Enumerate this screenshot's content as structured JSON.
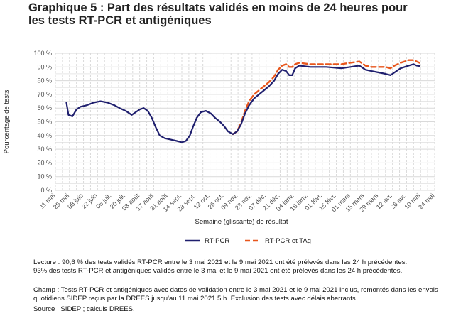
{
  "title_lines": [
    "Graphique 5 : Part des résultats validés en moins de 24 heures pour",
    "les tests RT-PCR et antigéniques"
  ],
  "notes": {
    "lecture": [
      "Lecture : 90,6 % des tests validés RT-PCR entre le 3 mai 2021 et le 9 mai 2021 ont été prélevés dans les 24 h précédentes.",
      "93% des tests RT-PCR et antigéniques validés entre le 3 mai et le 9 mai 2021 ont été prélevés dans les 24 h précédentes."
    ],
    "champ": [
      "Champ : Tests RT-PCR et antigéniques avec dates de validation entre le 3 mai 2021 et le 9 mai 2021 inclus, remontés dans les envois",
      "quotidiens SIDEP reçus par la DREES jusqu'au 11 mai 2021 5 h. Exclusion des tests avec délais aberrants."
    ],
    "source": "Source : SIDEP ; calculs DREES."
  },
  "colors": {
    "rtpcr": "#1f1f6e",
    "rtpcr_tag": "#e8561c",
    "grid": "#d9d9d9",
    "axis_text": "#4d4d4d"
  },
  "chart_data": {
    "type": "line",
    "title": "Graphique 5 : Part des résultats validés en moins de 24 heures pour les tests RT-PCR et antigéniques",
    "xlabel": "Semaine (glissante) de résultat",
    "ylabel": "Pourcentage de tests",
    "ylim": [
      0,
      100
    ],
    "yticks": [
      "0 %",
      "10 %",
      "20 %",
      "30 %",
      "40 %",
      "50 %",
      "60 %",
      "70 %",
      "80 %",
      "90 %",
      "100 %"
    ],
    "xlim": [
      "2020-05-11",
      "2021-05-24"
    ],
    "xticks": [
      {
        "date": "2020-05-11",
        "label": "11 mai"
      },
      {
        "date": "2020-05-25",
        "label": "25 mai"
      },
      {
        "date": "2020-06-08",
        "label": "08 juin"
      },
      {
        "date": "2020-06-22",
        "label": "22 juin"
      },
      {
        "date": "2020-07-06",
        "label": "06 juil."
      },
      {
        "date": "2020-07-20",
        "label": "20 juil."
      },
      {
        "date": "2020-08-03",
        "label": "03 août"
      },
      {
        "date": "2020-08-17",
        "label": "17 août"
      },
      {
        "date": "2020-08-31",
        "label": "31 août"
      },
      {
        "date": "2020-09-14",
        "label": "14 sept."
      },
      {
        "date": "2020-09-28",
        "label": "28 sept."
      },
      {
        "date": "2020-10-12",
        "label": "12 oct."
      },
      {
        "date": "2020-10-26",
        "label": "26 oct."
      },
      {
        "date": "2020-11-09",
        "label": "09 nov."
      },
      {
        "date": "2020-11-23",
        "label": "23 nov."
      },
      {
        "date": "2020-12-07",
        "label": "07 déc."
      },
      {
        "date": "2020-12-21",
        "label": "21 déc."
      },
      {
        "date": "2021-01-04",
        "label": "04 janv."
      },
      {
        "date": "2021-01-18",
        "label": "18 janv."
      },
      {
        "date": "2021-02-01",
        "label": "01 févr."
      },
      {
        "date": "2021-02-15",
        "label": "15 févr."
      },
      {
        "date": "2021-03-01",
        "label": "01 mars"
      },
      {
        "date": "2021-03-15",
        "label": "15 mars"
      },
      {
        "date": "2021-03-29",
        "label": "29 mars"
      },
      {
        "date": "2021-04-12",
        "label": "12 avr."
      },
      {
        "date": "2021-04-26",
        "label": "26 avr."
      },
      {
        "date": "2021-05-10",
        "label": "10 mai"
      },
      {
        "date": "2021-05-24",
        "label": "24 mai"
      }
    ],
    "grid": true,
    "legend": "bottom",
    "series": [
      {
        "name": "RT-PCR",
        "style": "solid",
        "points": [
          [
            "2020-05-22",
            64
          ],
          [
            "2020-05-24",
            55
          ],
          [
            "2020-05-28",
            54
          ],
          [
            "2020-06-01",
            59
          ],
          [
            "2020-06-05",
            61
          ],
          [
            "2020-06-11",
            62
          ],
          [
            "2020-06-18",
            64
          ],
          [
            "2020-06-25",
            65
          ],
          [
            "2020-07-02",
            64
          ],
          [
            "2020-07-09",
            62
          ],
          [
            "2020-07-14",
            60
          ],
          [
            "2020-07-20",
            58
          ],
          [
            "2020-07-26",
            55
          ],
          [
            "2020-07-30",
            57
          ],
          [
            "2020-08-03",
            59
          ],
          [
            "2020-08-07",
            60
          ],
          [
            "2020-08-11",
            58
          ],
          [
            "2020-08-15",
            53
          ],
          [
            "2020-08-19",
            46
          ],
          [
            "2020-08-23",
            40
          ],
          [
            "2020-08-28",
            38
          ],
          [
            "2020-09-03",
            37
          ],
          [
            "2020-09-09",
            36
          ],
          [
            "2020-09-14",
            35
          ],
          [
            "2020-09-18",
            36
          ],
          [
            "2020-09-22",
            40
          ],
          [
            "2020-09-25",
            46
          ],
          [
            "2020-09-29",
            53
          ],
          [
            "2020-10-03",
            57
          ],
          [
            "2020-10-08",
            58
          ],
          [
            "2020-10-13",
            56
          ],
          [
            "2020-10-17",
            53
          ],
          [
            "2020-10-22",
            50
          ],
          [
            "2020-10-26",
            47
          ],
          [
            "2020-10-30",
            43
          ],
          [
            "2020-11-04",
            41
          ],
          [
            "2020-11-08",
            43
          ],
          [
            "2020-11-12",
            48
          ],
          [
            "2020-11-16",
            56
          ],
          [
            "2020-11-20",
            62
          ],
          [
            "2020-11-25",
            67
          ],
          [
            "2020-11-30",
            70
          ],
          [
            "2020-12-05",
            73
          ],
          [
            "2020-12-10",
            76
          ],
          [
            "2020-12-15",
            80
          ],
          [
            "2020-12-19",
            85
          ],
          [
            "2020-12-23",
            88
          ],
          [
            "2020-12-27",
            87
          ],
          [
            "2020-12-30",
            84
          ],
          [
            "2021-01-02",
            84
          ],
          [
            "2021-01-05",
            89
          ],
          [
            "2021-01-09",
            91
          ],
          [
            "2021-01-20",
            90
          ],
          [
            "2021-02-05",
            90
          ],
          [
            "2021-02-20",
            89
          ],
          [
            "2021-03-01",
            90
          ],
          [
            "2021-03-10",
            91
          ],
          [
            "2021-03-16",
            88
          ],
          [
            "2021-03-22",
            87
          ],
          [
            "2021-03-29",
            86
          ],
          [
            "2021-04-05",
            85
          ],
          [
            "2021-04-10",
            84
          ],
          [
            "2021-04-14",
            86
          ],
          [
            "2021-04-20",
            89
          ],
          [
            "2021-04-28",
            91
          ],
          [
            "2021-05-03",
            92
          ],
          [
            "2021-05-06",
            91
          ],
          [
            "2021-05-09",
            90.6
          ]
        ]
      },
      {
        "name": "RT-PCR et TAg",
        "style": "dashed",
        "points": [
          [
            "2020-11-04",
            41
          ],
          [
            "2020-11-08",
            43
          ],
          [
            "2020-11-12",
            49
          ],
          [
            "2020-11-16",
            58
          ],
          [
            "2020-11-20",
            65
          ],
          [
            "2020-11-25",
            70
          ],
          [
            "2020-11-30",
            73
          ],
          [
            "2020-12-05",
            76
          ],
          [
            "2020-12-10",
            79
          ],
          [
            "2020-12-15",
            83
          ],
          [
            "2020-12-19",
            88
          ],
          [
            "2020-12-23",
            91
          ],
          [
            "2020-12-27",
            92
          ],
          [
            "2020-12-30",
            90
          ],
          [
            "2021-01-02",
            90
          ],
          [
            "2021-01-05",
            92
          ],
          [
            "2021-01-09",
            93
          ],
          [
            "2021-01-20",
            92
          ],
          [
            "2021-02-05",
            92
          ],
          [
            "2021-02-20",
            92
          ],
          [
            "2021-03-01",
            93
          ],
          [
            "2021-03-10",
            94
          ],
          [
            "2021-03-16",
            91
          ],
          [
            "2021-03-22",
            90
          ],
          [
            "2021-03-29",
            90
          ],
          [
            "2021-04-05",
            90
          ],
          [
            "2021-04-10",
            89
          ],
          [
            "2021-04-14",
            91
          ],
          [
            "2021-04-20",
            93
          ],
          [
            "2021-04-28",
            95
          ],
          [
            "2021-05-03",
            95
          ],
          [
            "2021-05-06",
            94
          ],
          [
            "2021-05-09",
            93
          ]
        ]
      }
    ]
  }
}
